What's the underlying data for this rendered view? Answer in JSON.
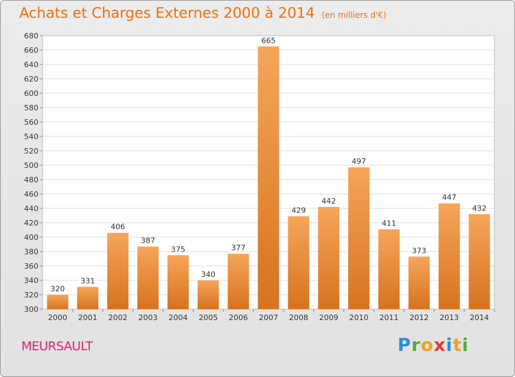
{
  "title": "Achats et Charges Externes 2000 à 2014",
  "unit": "(en milliers d'€)",
  "place": "MEURSAULT",
  "logo": "Proxiti",
  "colors": {
    "bar_light": "#f6a55a",
    "bar_dark": "#d6731f",
    "title": "#ee6f0e",
    "place": "#e61e6e"
  },
  "chart_data": {
    "type": "bar",
    "categories": [
      "2000",
      "2001",
      "2002",
      "2003",
      "2004",
      "2005",
      "2006",
      "2007",
      "2008",
      "2009",
      "2010",
      "2011",
      "2012",
      "2013",
      "2014"
    ],
    "values": [
      320,
      331,
      406,
      387,
      375,
      340,
      377,
      665,
      429,
      442,
      497,
      411,
      373,
      447,
      432
    ],
    "ylim": [
      300,
      680
    ],
    "ytick_step": 20,
    "grid": true,
    "data_labels": true
  }
}
